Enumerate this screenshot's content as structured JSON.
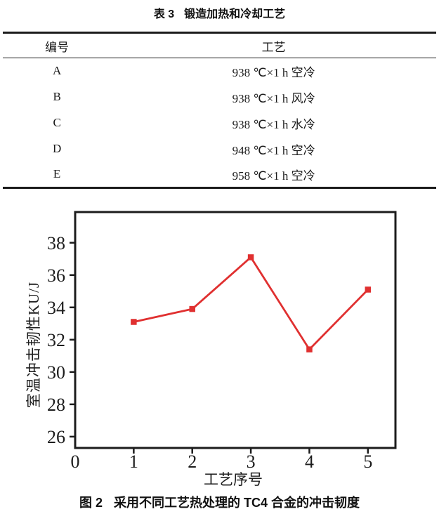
{
  "page": {
    "background": "#ffffff",
    "text_color": "#1a1a1a"
  },
  "table": {
    "caption_label": "表 3",
    "caption_text": "锻造加热和冷却工艺",
    "headers": [
      "编号",
      "工艺"
    ],
    "rows": [
      {
        "id": "A",
        "process": "938 ℃×1 h 空冷"
      },
      {
        "id": "B",
        "process": "938 ℃×1 h 风冷"
      },
      {
        "id": "C",
        "process": "938 ℃×1 h 水冷"
      },
      {
        "id": "D",
        "process": "948 ℃×1 h 空冷"
      },
      {
        "id": "E",
        "process": "958 ℃×1 h 空冷"
      }
    ]
  },
  "figure": {
    "caption_label": "图 2",
    "caption_text": "采用不同工艺热处理的 TC4 合金的冲击韧度"
  },
  "chart_data": {
    "type": "line",
    "title": "",
    "xlabel": "工艺序号",
    "ylabel": "室温冲击韧性KU/J",
    "x": [
      1,
      2,
      3,
      4,
      5
    ],
    "series": [
      {
        "name": "室温冲击韧性",
        "values": [
          33.1,
          33.9,
          37.1,
          31.4,
          35.1
        ]
      }
    ],
    "xlim": [
      0,
      5.47
    ],
    "ylim": [
      25.3,
      39.9
    ],
    "xticks": [
      0,
      1,
      2,
      3,
      4,
      5
    ],
    "yticks": [
      26,
      28,
      30,
      32,
      34,
      36,
      38
    ],
    "grid": false,
    "legend": "none",
    "line_color": "#e03030",
    "marker": "square",
    "axis_color": "#1c1c1c"
  }
}
